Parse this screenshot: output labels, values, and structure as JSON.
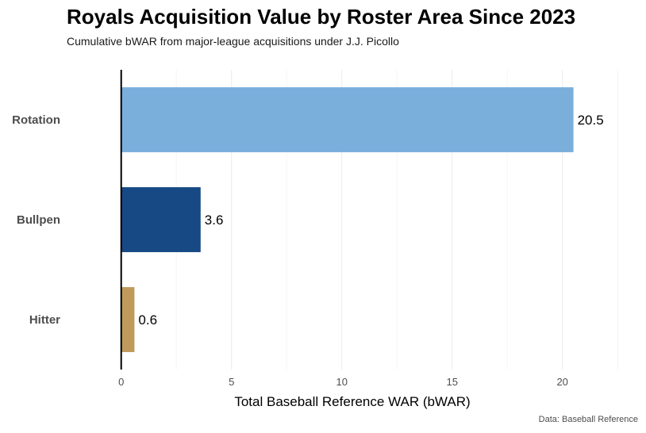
{
  "chart_data": {
    "type": "bar",
    "orientation": "horizontal",
    "title": "Royals Acquisition Value by Roster Area Since 2023",
    "subtitle": "Cumulative bWAR from major-league acquisitions under J.J. Picollo",
    "caption": "Data: Baseball Reference",
    "xlabel": "Total Baseball Reference WAR (bWAR)",
    "ylabel": "",
    "categories": [
      "Rotation",
      "Bullpen",
      "Hitter"
    ],
    "values": [
      20.5,
      3.6,
      0.6
    ],
    "value_labels": [
      "20.5",
      "3.6",
      "0.6"
    ],
    "colors": [
      "#7aafdc",
      "#174a84",
      "#c09a5b"
    ],
    "xlim": [
      -2.4,
      23.5
    ],
    "xticks": [
      0,
      5,
      10,
      15,
      20
    ],
    "grid": true,
    "legend": "none"
  }
}
